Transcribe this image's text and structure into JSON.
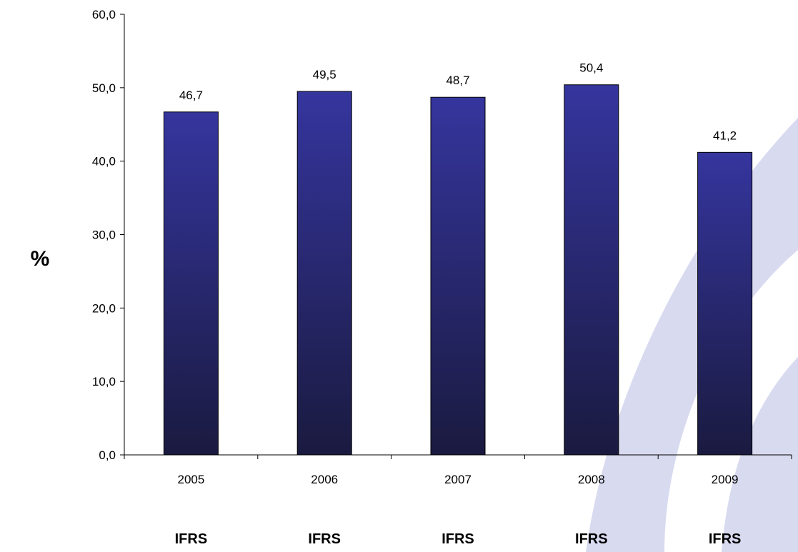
{
  "chart_data": {
    "type": "bar",
    "title": "",
    "xlabel": "",
    "ylabel": "%",
    "categories": [
      "2005",
      "2006",
      "2007",
      "2008",
      "2009"
    ],
    "values": [
      46.7,
      49.5,
      48.7,
      50.4,
      41.2
    ],
    "value_labels": [
      "46,7",
      "49,5",
      "48,7",
      "50,4",
      "41,2"
    ],
    "ylim": [
      0,
      60
    ],
    "yticks": [
      0,
      10,
      20,
      30,
      40,
      50,
      60
    ],
    "ytick_labels": [
      "0,0",
      "10,0",
      "20,0",
      "30,0",
      "40,0",
      "50,0",
      "60,0"
    ],
    "standard_labels": [
      "IFRS",
      "IFRS",
      "IFRS",
      "IFRS",
      "IFRS"
    ],
    "grid": false,
    "legend": "none",
    "colors": {
      "bar_top": "#35359e",
      "bar_bottom": "#1a1a40",
      "axis": "#000000",
      "background_arc": "#d8daf0"
    }
  }
}
